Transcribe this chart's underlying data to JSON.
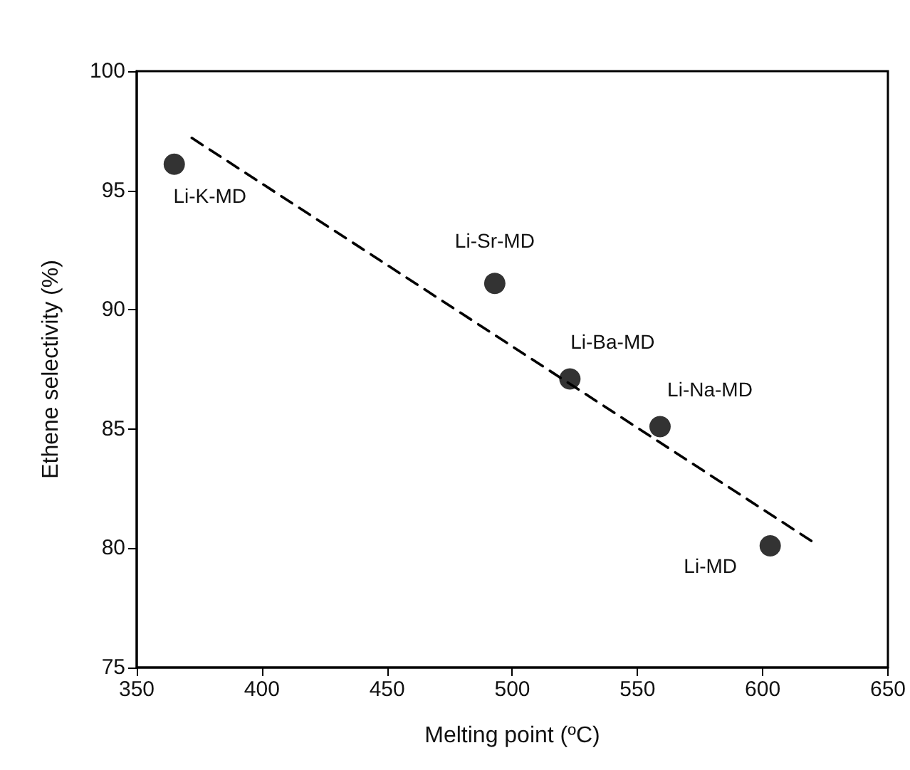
{
  "chart_data": {
    "type": "scatter",
    "xlabel": "Melting point (ºC)",
    "ylabel": "Ethene selectivity (%)",
    "xlim": [
      350,
      650
    ],
    "xticks": [
      350,
      400,
      450,
      500,
      550,
      600,
      650
    ],
    "ylim": [
      75,
      100
    ],
    "yticks": [
      75,
      80,
      85,
      90,
      95,
      100
    ],
    "grid": false,
    "marker": "circle",
    "series": [
      {
        "color": "#000000",
        "x": [
          365,
          493,
          523,
          559,
          603
        ],
        "values": [
          96.1,
          91.1,
          87.1,
          85.1,
          80.1
        ]
      },
      {
        "type": "line",
        "color": "#000000",
        "line_style": "dashed",
        "marker": "none",
        "x": [
          372,
          621
        ],
        "values": [
          97.2,
          80.2
        ]
      }
    ],
    "annotations": [
      {
        "text": "Li-K-MD",
        "x": 365,
        "y": 96.1
      },
      {
        "text": "Li-Sr-MD",
        "x": 493,
        "y": 91.1
      },
      {
        "text": "Li-Ba-MD",
        "x": 523,
        "y": 87.1
      },
      {
        "text": "Li-Na-MD",
        "x": 559,
        "y": 85.1
      },
      {
        "text": "Li-MD",
        "x": 603,
        "y": 80.1
      }
    ]
  }
}
